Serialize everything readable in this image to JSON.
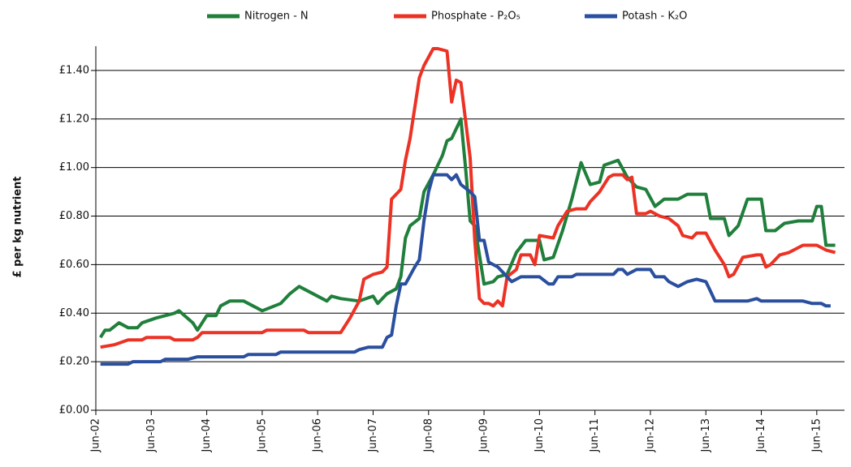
{
  "chart_data": {
    "type": "line",
    "y_label": "£ per kg nutrient",
    "ylim": [
      0,
      1.5
    ],
    "yticks": [
      {
        "value": 0,
        "label": "£0.00"
      },
      {
        "value": 0.2,
        "label": "£0.20"
      },
      {
        "value": 0.4,
        "label": "£0.40"
      },
      {
        "value": 0.6,
        "label": "£0.60"
      },
      {
        "value": 0.8,
        "label": "£0.80"
      },
      {
        "value": 1.0,
        "label": "£1.00"
      },
      {
        "value": 1.2,
        "label": "£1.20"
      },
      {
        "value": 1.4,
        "label": "£1.40"
      }
    ],
    "xlim": [
      "2002-06",
      "2015-12"
    ],
    "xticks": [
      {
        "value": "2002-06",
        "label": "Jun-02"
      },
      {
        "value": "2003-06",
        "label": "Jun-03"
      },
      {
        "value": "2004-06",
        "label": "Jun-04"
      },
      {
        "value": "2005-06",
        "label": "Jun-05"
      },
      {
        "value": "2006-06",
        "label": "Jun-06"
      },
      {
        "value": "2007-06",
        "label": "Jun-07"
      },
      {
        "value": "2008-06",
        "label": "Jun-08"
      },
      {
        "value": "2009-06",
        "label": "Jun-09"
      },
      {
        "value": "2010-06",
        "label": "Jun-10"
      },
      {
        "value": "2011-06",
        "label": "Jun-11"
      },
      {
        "value": "2012-06",
        "label": "Jun-12"
      },
      {
        "value": "2013-06",
        "label": "Jun-13"
      },
      {
        "value": "2014-06",
        "label": "Jun-14"
      },
      {
        "value": "2015-06",
        "label": "Jun-15"
      }
    ],
    "grid": true,
    "legend": "top",
    "series": [
      {
        "name": "Nitrogen - N",
        "color": "#1f7f3b",
        "x": [
          "2002-07",
          "2002-08",
          "2002-09",
          "2002-11",
          "2003-01",
          "2003-03",
          "2003-04",
          "2003-07",
          "2003-09",
          "2003-11",
          "2003-12",
          "2004-03",
          "2004-04",
          "2004-06",
          "2004-08",
          "2004-09",
          "2004-11",
          "2005-02",
          "2005-04",
          "2005-06",
          "2005-10",
          "2005-12",
          "2006-02",
          "2006-04",
          "2006-06",
          "2006-08",
          "2006-09",
          "2006-11",
          "2007-03",
          "2007-06",
          "2007-07",
          "2007-09",
          "2007-11",
          "2007-12",
          "2008-01",
          "2008-02",
          "2008-04",
          "2008-05",
          "2008-07",
          "2008-09",
          "2008-10",
          "2008-11",
          "2008-12",
          "2009-01",
          "2009-02",
          "2009-03",
          "2009-04",
          "2009-06",
          "2009-08",
          "2009-09",
          "2009-11",
          "2010-01",
          "2010-03",
          "2010-06",
          "2010-07",
          "2010-09",
          "2010-11",
          "2011-01",
          "2011-03",
          "2011-05",
          "2011-07",
          "2011-08",
          "2011-11",
          "2012-01",
          "2012-03",
          "2012-05",
          "2012-07",
          "2012-09",
          "2012-12",
          "2013-02",
          "2013-06",
          "2013-07",
          "2013-10",
          "2013-11",
          "2014-01",
          "2014-03",
          "2014-06",
          "2014-07",
          "2014-09",
          "2014-11",
          "2015-02",
          "2015-05",
          "2015-06",
          "2015-07",
          "2015-08",
          "2015-10"
        ],
        "values": [
          0.3,
          0.33,
          0.33,
          0.36,
          0.34,
          0.34,
          0.36,
          0.38,
          0.39,
          0.4,
          0.41,
          0.36,
          0.33,
          0.39,
          0.39,
          0.43,
          0.45,
          0.45,
          0.43,
          0.41,
          0.44,
          0.48,
          0.51,
          0.49,
          0.47,
          0.45,
          0.47,
          0.46,
          0.45,
          0.47,
          0.44,
          0.48,
          0.5,
          0.55,
          0.71,
          0.76,
          0.79,
          0.9,
          0.97,
          1.05,
          1.11,
          1.12,
          1.16,
          1.2,
          1.0,
          0.78,
          0.76,
          0.52,
          0.53,
          0.55,
          0.56,
          0.65,
          0.7,
          0.7,
          0.62,
          0.63,
          0.74,
          0.87,
          1.02,
          0.93,
          0.94,
          1.01,
          1.03,
          0.96,
          0.92,
          0.91,
          0.84,
          0.87,
          0.87,
          0.89,
          0.89,
          0.79,
          0.79,
          0.72,
          0.76,
          0.87,
          0.87,
          0.74,
          0.74,
          0.77,
          0.78,
          0.78,
          0.84,
          0.84,
          0.68,
          0.68
        ]
      },
      {
        "name": "Phosphate - P₂O₅",
        "color": "#ec3225",
        "x": [
          "2002-07",
          "2002-10",
          "2003-01",
          "2003-04",
          "2003-05",
          "2003-10",
          "2003-11",
          "2004-03",
          "2004-04",
          "2004-05",
          "2005-06",
          "2005-07",
          "2006-03",
          "2006-04",
          "2006-11",
          "2007-01",
          "2007-03",
          "2007-04",
          "2007-06",
          "2007-08",
          "2007-09",
          "2007-10",
          "2007-12",
          "2008-01",
          "2008-02",
          "2008-04",
          "2008-05",
          "2008-07",
          "2008-08",
          "2008-10",
          "2008-11",
          "2008-12",
          "2009-01",
          "2009-03",
          "2009-04",
          "2009-05",
          "2009-06",
          "2009-07",
          "2009-08",
          "2009-09",
          "2009-10",
          "2009-11",
          "2010-01",
          "2010-02",
          "2010-04",
          "2010-05",
          "2010-06",
          "2010-09",
          "2010-10",
          "2010-12",
          "2011-02",
          "2011-04",
          "2011-05",
          "2011-07",
          "2011-09",
          "2011-10",
          "2011-12",
          "2012-01",
          "2012-02",
          "2012-03",
          "2012-05",
          "2012-06",
          "2012-08",
          "2012-10",
          "2012-12",
          "2013-01",
          "2013-03",
          "2013-04",
          "2013-06",
          "2013-08",
          "2013-10",
          "2013-11",
          "2013-12",
          "2014-02",
          "2014-05",
          "2014-06",
          "2014-07",
          "2014-08",
          "2014-10",
          "2014-12",
          "2015-03",
          "2015-06",
          "2015-08",
          "2015-10"
        ],
        "values": [
          0.26,
          0.27,
          0.29,
          0.29,
          0.3,
          0.3,
          0.29,
          0.29,
          0.3,
          0.32,
          0.32,
          0.33,
          0.33,
          0.32,
          0.32,
          0.38,
          0.45,
          0.54,
          0.56,
          0.57,
          0.59,
          0.87,
          0.91,
          1.03,
          1.12,
          1.37,
          1.42,
          1.49,
          1.49,
          1.48,
          1.27,
          1.36,
          1.35,
          1.04,
          0.7,
          0.46,
          0.44,
          0.44,
          0.43,
          0.45,
          0.43,
          0.55,
          0.58,
          0.64,
          0.64,
          0.6,
          0.72,
          0.71,
          0.76,
          0.82,
          0.83,
          0.83,
          0.86,
          0.9,
          0.96,
          0.97,
          0.97,
          0.95,
          0.96,
          0.81,
          0.81,
          0.82,
          0.8,
          0.79,
          0.76,
          0.72,
          0.71,
          0.73,
          0.73,
          0.66,
          0.6,
          0.55,
          0.56,
          0.63,
          0.64,
          0.64,
          0.59,
          0.6,
          0.64,
          0.65,
          0.68,
          0.68,
          0.66,
          0.65
        ]
      },
      {
        "name": "Potash - K₂O",
        "color": "#2a4f9f",
        "x": [
          "2002-07",
          "2003-01",
          "2003-02",
          "2003-08",
          "2003-09",
          "2004-02",
          "2004-04",
          "2005-02",
          "2005-03",
          "2005-09",
          "2005-10",
          "2007-02",
          "2007-03",
          "2007-05",
          "2007-08",
          "2007-09",
          "2007-10",
          "2007-11",
          "2007-12",
          "2008-01",
          "2008-03",
          "2008-04",
          "2008-05",
          "2008-06",
          "2008-07",
          "2008-08",
          "2008-10",
          "2008-11",
          "2008-12",
          "2009-01",
          "2009-03",
          "2009-04",
          "2009-05",
          "2009-06",
          "2009-07",
          "2009-09",
          "2009-11",
          "2009-12",
          "2010-02",
          "2010-06",
          "2010-08",
          "2010-09",
          "2010-10",
          "2011-01",
          "2011-02",
          "2011-10",
          "2011-11",
          "2011-12",
          "2012-01",
          "2012-03",
          "2012-06",
          "2012-07",
          "2012-09",
          "2012-10",
          "2012-12",
          "2013-02",
          "2013-04",
          "2013-06",
          "2013-07",
          "2013-08",
          "2013-09",
          "2014-03",
          "2014-05",
          "2014-06",
          "2015-03",
          "2015-05",
          "2015-07",
          "2015-08",
          "2015-09"
        ],
        "values": [
          0.19,
          0.19,
          0.2,
          0.2,
          0.21,
          0.21,
          0.22,
          0.22,
          0.23,
          0.23,
          0.24,
          0.24,
          0.25,
          0.26,
          0.26,
          0.3,
          0.31,
          0.43,
          0.52,
          0.52,
          0.59,
          0.62,
          0.78,
          0.9,
          0.97,
          0.97,
          0.97,
          0.95,
          0.97,
          0.93,
          0.9,
          0.88,
          0.7,
          0.7,
          0.61,
          0.59,
          0.55,
          0.53,
          0.55,
          0.55,
          0.52,
          0.52,
          0.55,
          0.55,
          0.56,
          0.56,
          0.58,
          0.58,
          0.56,
          0.58,
          0.58,
          0.55,
          0.55,
          0.53,
          0.51,
          0.53,
          0.54,
          0.53,
          0.49,
          0.45,
          0.45,
          0.45,
          0.46,
          0.45,
          0.45,
          0.44,
          0.44,
          0.43,
          0.43
        ]
      }
    ]
  }
}
